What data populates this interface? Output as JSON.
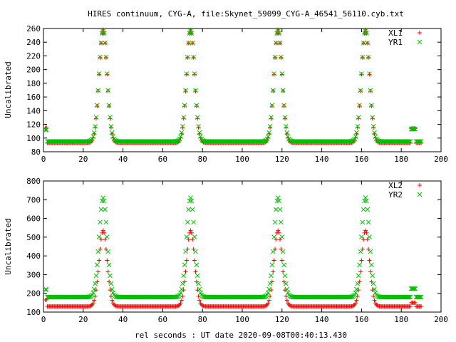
{
  "figure": {
    "title": "HIRES continuum, CYG-A, file:Skynet_59099_CYG-A_46541_56110.cyb.txt",
    "xlabel": "rel seconds : UT date 2020-09-08T00:40:13.430"
  },
  "colors": {
    "series_a": "#ff0000",
    "series_b": "#00c000"
  },
  "chart_data": [
    {
      "type": "scatter",
      "ylabel": "Uncalibrated",
      "xlim": [
        0,
        200
      ],
      "ylim": [
        80,
        260
      ],
      "xticks": [
        0,
        20,
        40,
        60,
        80,
        100,
        120,
        140,
        160,
        180,
        200
      ],
      "yticks": [
        80,
        100,
        120,
        140,
        160,
        180,
        200,
        220,
        240,
        260
      ],
      "grid": false,
      "legend": "top-right",
      "series": [
        {
          "name": "XL1",
          "marker": "plus",
          "color": "#ff0000",
          "baseline": 93,
          "peak": 258,
          "peak_times": [
            30,
            74,
            118,
            162
          ],
          "start_level": 115,
          "end_level": 114,
          "end_times": [
            185,
            187
          ]
        },
        {
          "name": "YR1",
          "marker": "x",
          "color": "#00c000",
          "baseline": 95,
          "peak": 258,
          "peak_times": [
            30,
            74,
            118,
            162
          ],
          "start_level": 112,
          "end_level": 113,
          "end_times": [
            185,
            187
          ]
        }
      ]
    },
    {
      "type": "scatter",
      "ylabel": "Uncalibrated",
      "xlim": [
        0,
        200
      ],
      "ylim": [
        100,
        800
      ],
      "xticks": [
        0,
        20,
        40,
        60,
        80,
        100,
        120,
        140,
        160,
        180,
        200
      ],
      "yticks": [
        100,
        200,
        300,
        400,
        500,
        600,
        700,
        800
      ],
      "grid": false,
      "legend": "top-right",
      "series": [
        {
          "name": "XL2",
          "marker": "plus",
          "color": "#ff0000",
          "baseline": 130,
          "peak": 535,
          "peak_times": [
            30,
            74,
            118,
            162
          ],
          "start_level": 165,
          "end_level": 150,
          "end_times": [
            185,
            187
          ]
        },
        {
          "name": "YR2",
          "marker": "x",
          "color": "#00c000",
          "baseline": 180,
          "peak": 710,
          "peak_times": [
            30,
            74,
            118,
            162
          ],
          "start_level": 220,
          "end_level": 225,
          "end_times": [
            185,
            187
          ]
        }
      ]
    }
  ]
}
